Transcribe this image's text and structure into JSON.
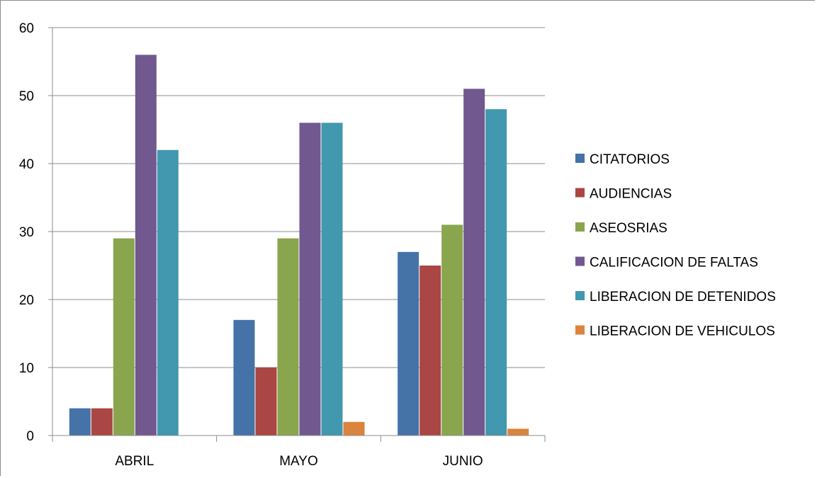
{
  "chart_data": {
    "type": "bar",
    "title": "",
    "xlabel": "",
    "ylabel": "",
    "categories": [
      "ABRIL",
      "MAYO",
      "JUNIO"
    ],
    "ylim": [
      0,
      60
    ],
    "yticks": [
      0,
      10,
      20,
      30,
      40,
      50,
      60
    ],
    "grid": true,
    "legend_position": "right",
    "series": [
      {
        "name": "CITATORIOS",
        "color": "#4572a7",
        "values": [
          4,
          17,
          27
        ]
      },
      {
        "name": "AUDIENCIAS",
        "color": "#aa4643",
        "values": [
          4,
          10,
          25
        ]
      },
      {
        "name": "ASEOSRIAS",
        "color": "#89a54e",
        "values": [
          29,
          29,
          31
        ]
      },
      {
        "name": "CALIFICACION DE FALTAS",
        "color": "#71588f",
        "values": [
          56,
          46,
          51
        ]
      },
      {
        "name": "LIBERACION DE DETENIDOS",
        "color": "#4198af",
        "values": [
          42,
          46,
          48
        ]
      },
      {
        "name": "LIBERACION DE VEHICULOS",
        "color": "#db843d",
        "values": [
          0,
          2,
          1
        ]
      }
    ]
  }
}
